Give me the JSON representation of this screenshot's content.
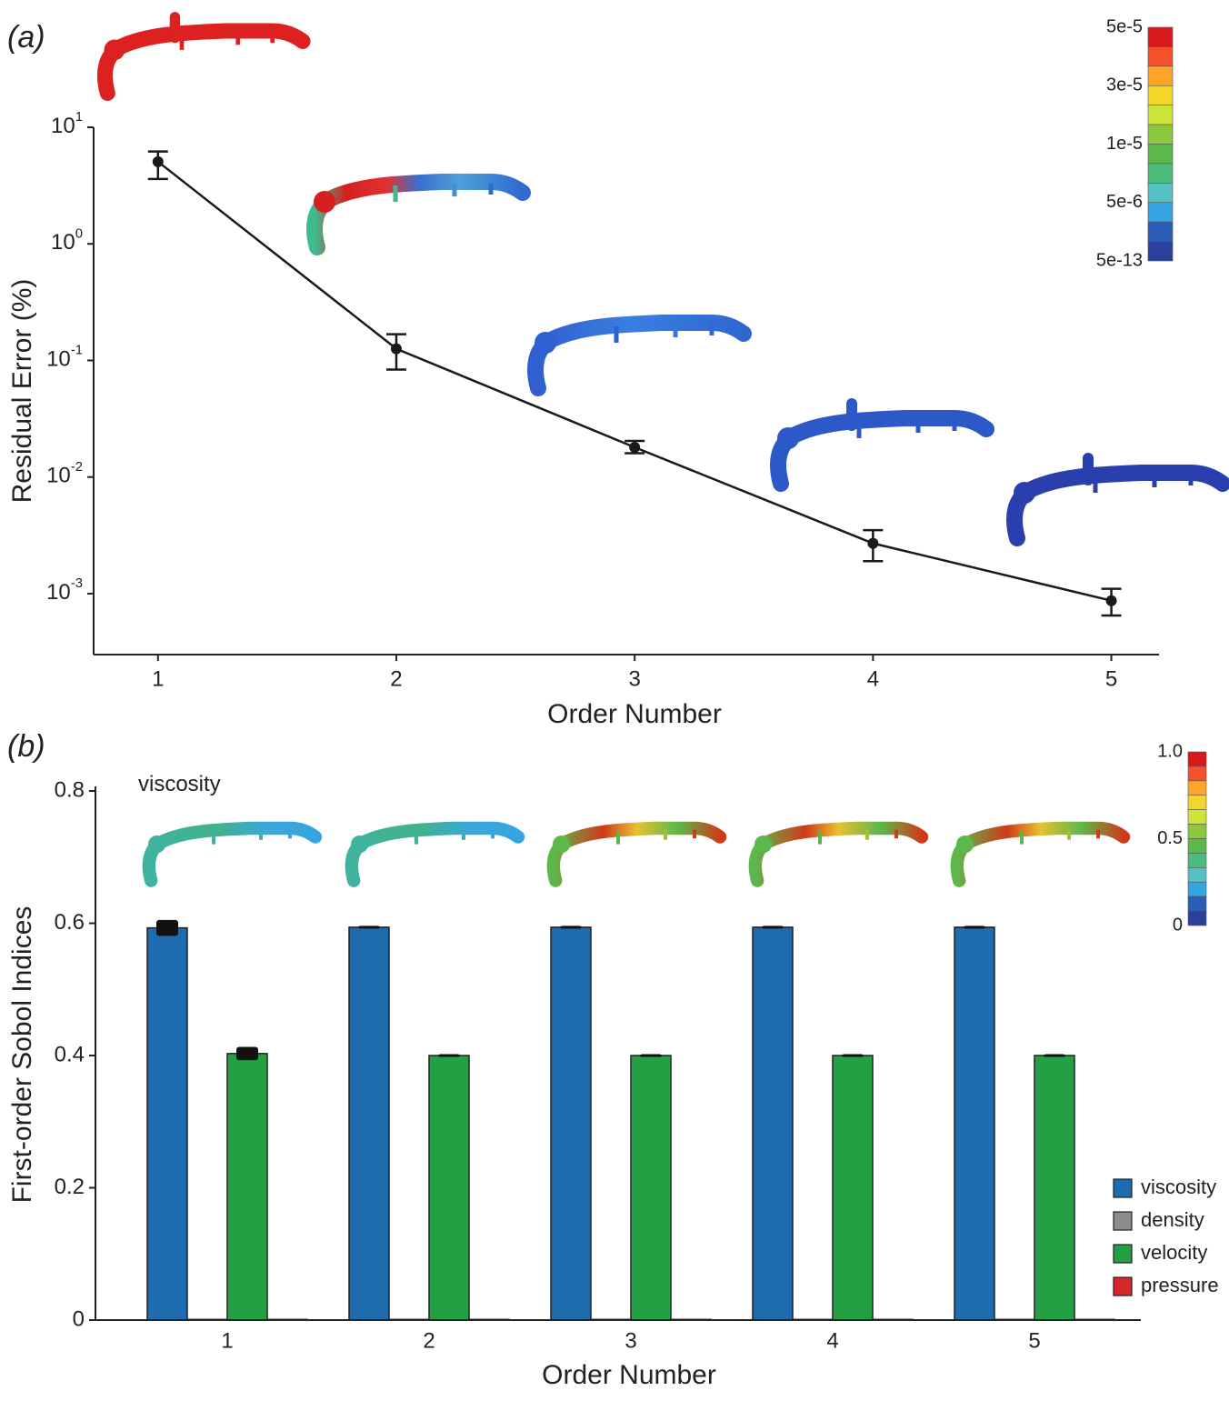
{
  "chart_data": [
    {
      "type": "line",
      "label": "(a)",
      "xlabel": "Order Number",
      "ylabel": "Residual Error (%)",
      "x": [
        1,
        2,
        3,
        4,
        5
      ],
      "values": [
        5.07,
        0.126,
        0.018,
        0.0027,
        0.00087
      ],
      "lower": [
        3.6,
        0.0836,
        0.016,
        0.0019,
        0.00065
      ],
      "upper": [
        6.2,
        0.168,
        0.0204,
        0.0035,
        0.0011
      ],
      "color": "#1a1a1a",
      "xlim": [
        0.73,
        5.2
      ],
      "xticks": [
        1,
        2,
        3,
        4,
        5
      ],
      "ylim": [
        0.0003,
        10
      ],
      "ylog": true,
      "yticks": [
        {
          "value": 10,
          "label": "10",
          "exponent": "1"
        },
        {
          "value": 1,
          "label": "10",
          "exponent": "0"
        },
        {
          "value": 0.1,
          "label": "10",
          "exponent": "-1"
        },
        {
          "value": 0.01,
          "label": "10",
          "exponent": "-2"
        },
        {
          "value": 0.001,
          "label": "10",
          "exponent": "-3"
        }
      ],
      "colorbar_labels": [
        "5e-5",
        "3e-5",
        "1e-5",
        "5e-6",
        "5e-13"
      ]
    },
    {
      "type": "bar",
      "label": "(b)",
      "xlabel": "Order Number",
      "ylabel": "First-order Sobol Indices",
      "annotation": "viscosity",
      "categories": [
        "1",
        "2",
        "3",
        "4",
        "5"
      ],
      "series": [
        {
          "name": "viscosity",
          "color": "#1f6bb0",
          "values": [
            0.593,
            0.594,
            0.594,
            0.594,
            0.594
          ],
          "errors": [
            0.012,
            0.002,
            0.002,
            0.002,
            0.002
          ]
        },
        {
          "name": "density",
          "color": "#8c8c8c",
          "values": [
            0.001,
            0.001,
            0.001,
            0.001,
            0.001
          ]
        },
        {
          "name": "velocity",
          "color": "#23a043",
          "values": [
            0.403,
            0.4,
            0.4,
            0.4,
            0.4
          ],
          "errors": [
            0.01,
            0.002,
            0.002,
            0.002,
            0.002
          ]
        },
        {
          "name": "pressure",
          "color": "#d9262a",
          "values": [
            0.001,
            0.001,
            0.001,
            0.001,
            0.001
          ]
        }
      ],
      "ylim": [
        0,
        0.8
      ],
      "yticks": [
        0,
        0.2,
        0.4,
        0.6,
        0.8
      ],
      "legend": "lower-right",
      "colorbar_labels": [
        "1.0",
        "0.5",
        "0"
      ]
    }
  ]
}
